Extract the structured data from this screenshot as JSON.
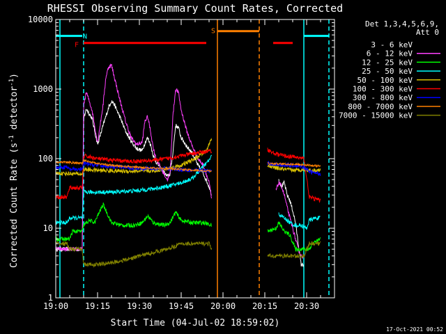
{
  "chart_data": {
    "type": "line",
    "title": "RHESSI Observing Summary Count Rates, Corrected",
    "xlabel": "Start Time (04-Jul-02 18:59:02)",
    "ylabel_main": "Corrected Count Rate (s",
    "ylabel_sup1": "-1",
    "ylabel_mid": " detector",
    "ylabel_sup2": "-1",
    "ylabel_end": ")",
    "footer_date": "17-Oct-2021 00:52",
    "x_range_min": [
      0,
      100
    ],
    "y_range_log": [
      1,
      10000
    ],
    "x_ticks": [
      {
        "t": 0,
        "label": "19:00"
      },
      {
        "t": 15,
        "label": "19:15"
      },
      {
        "t": 30,
        "label": "19:30"
      },
      {
        "t": 45,
        "label": "19:45"
      },
      {
        "t": 60,
        "label": "20:00"
      },
      {
        "t": 75,
        "label": "20:15"
      },
      {
        "t": 90,
        "label": "20:30"
      }
    ],
    "y_ticks": [
      {
        "v": 1,
        "label": "1"
      },
      {
        "v": 10,
        "label": "10"
      },
      {
        "v": 100,
        "label": "100"
      },
      {
        "v": 1000,
        "label": "1000"
      },
      {
        "v": 10000,
        "label": "10000"
      }
    ],
    "legend_header": [
      "Det 1,3,4,5,6,9,",
      "Att 0"
    ],
    "series": [
      {
        "name": "3 - 6 keV",
        "color": "#ffffff",
        "swatch": "#000000",
        "points": [
          [
            0,
            5
          ],
          [
            4,
            5
          ],
          [
            7,
            5
          ],
          [
            9.5,
            5
          ],
          [
            10,
            380
          ],
          [
            11,
            520
          ],
          [
            13,
            380
          ],
          [
            15,
            160
          ],
          [
            17,
            300
          ],
          [
            19,
            550
          ],
          [
            20,
            680
          ],
          [
            21,
            600
          ],
          [
            23,
            400
          ],
          [
            25,
            250
          ],
          [
            27,
            180
          ],
          [
            29,
            140
          ],
          [
            31,
            130
          ],
          [
            32,
            170
          ],
          [
            33,
            200
          ],
          [
            34,
            160
          ],
          [
            35,
            110
          ],
          [
            36,
            90
          ],
          [
            38,
            70
          ],
          [
            40,
            55
          ],
          [
            41,
            60
          ],
          [
            42,
            120
          ],
          [
            43,
            300
          ],
          [
            44,
            280
          ],
          [
            45,
            200
          ],
          [
            47,
            150
          ],
          [
            49,
            120
          ],
          [
            51,
            80
          ],
          [
            53,
            60
          ],
          [
            55,
            40
          ],
          [
            56,
            30
          ]
        ],
        "points2": [
          [
            80,
            50
          ],
          [
            81,
            40
          ],
          [
            82,
            45
          ],
          [
            83,
            30
          ],
          [
            84,
            25
          ],
          [
            85,
            18
          ],
          [
            86,
            12
          ],
          [
            87,
            6
          ],
          [
            88,
            3
          ],
          [
            89,
            3
          ]
        ]
      },
      {
        "name": "6 - 12 keV",
        "color": "#ff40ff",
        "swatch": "#ff40ff",
        "points": [
          [
            0,
            5
          ],
          [
            4,
            5
          ],
          [
            7,
            5
          ],
          [
            9.5,
            5
          ],
          [
            10,
            600
          ],
          [
            11,
            900
          ],
          [
            13,
            500
          ],
          [
            15,
            170
          ],
          [
            17,
            600
          ],
          [
            18,
            1500
          ],
          [
            19,
            2100
          ],
          [
            20,
            2200
          ],
          [
            21,
            1500
          ],
          [
            23,
            700
          ],
          [
            25,
            350
          ],
          [
            27,
            200
          ],
          [
            29,
            160
          ],
          [
            31,
            170
          ],
          [
            32,
            350
          ],
          [
            33,
            400
          ],
          [
            34,
            250
          ],
          [
            35,
            140
          ],
          [
            36,
            100
          ],
          [
            38,
            70
          ],
          [
            40,
            50
          ],
          [
            41,
            60
          ],
          [
            42,
            400
          ],
          [
            43,
            1000
          ],
          [
            44,
            900
          ],
          [
            45,
            500
          ],
          [
            47,
            250
          ],
          [
            49,
            150
          ],
          [
            51,
            100
          ],
          [
            53,
            80
          ],
          [
            55,
            45
          ],
          [
            56,
            25
          ]
        ],
        "points2": [
          [
            79,
            35
          ],
          [
            80,
            45
          ],
          [
            81,
            40
          ],
          [
            82,
            30
          ],
          [
            83,
            20
          ],
          [
            84,
            14
          ],
          [
            85,
            10
          ],
          [
            86,
            7
          ],
          [
            87,
            5
          ],
          [
            88,
            4
          ],
          [
            89,
            4
          ]
        ]
      },
      {
        "name": "12 - 25 keV",
        "color": "#00ff00",
        "swatch": "#00ff00",
        "points": [
          [
            0,
            7
          ],
          [
            3,
            7
          ],
          [
            5,
            7
          ],
          [
            6,
            9
          ],
          [
            9.5,
            9
          ],
          [
            10,
            11
          ],
          [
            12,
            13
          ],
          [
            14,
            12
          ],
          [
            15,
            15
          ],
          [
            17,
            22
          ],
          [
            18,
            18
          ],
          [
            20,
            12
          ],
          [
            24,
            11
          ],
          [
            28,
            11
          ],
          [
            31,
            12
          ],
          [
            33,
            15
          ],
          [
            35,
            12
          ],
          [
            39,
            11
          ],
          [
            41,
            12
          ],
          [
            43,
            17
          ],
          [
            45,
            13
          ],
          [
            49,
            12
          ],
          [
            53,
            12
          ],
          [
            56,
            11
          ]
        ],
        "points2": [
          [
            76,
            9
          ],
          [
            79,
            10
          ],
          [
            80,
            12
          ],
          [
            82,
            9
          ],
          [
            84,
            8
          ],
          [
            86,
            5
          ],
          [
            89,
            5
          ],
          [
            91,
            5
          ],
          [
            92,
            6
          ],
          [
            95,
            7
          ]
        ]
      },
      {
        "name": "25 - 50 keV",
        "color": "#00ffff",
        "swatch": "#00ffff",
        "points": [
          [
            0,
            12
          ],
          [
            4,
            12
          ],
          [
            5,
            14
          ],
          [
            9.5,
            14
          ],
          [
            10,
            33
          ],
          [
            15,
            33
          ],
          [
            20,
            33
          ],
          [
            25,
            34
          ],
          [
            30,
            35
          ],
          [
            35,
            37
          ],
          [
            40,
            40
          ],
          [
            45,
            45
          ],
          [
            49,
            52
          ],
          [
            52,
            70
          ],
          [
            55,
            95
          ],
          [
            56,
            110
          ]
        ],
        "points2": [
          [
            80,
            16
          ],
          [
            82,
            14
          ],
          [
            84,
            12
          ],
          [
            86,
            11
          ],
          [
            88,
            11
          ],
          [
            90,
            10
          ],
          [
            91,
            13
          ],
          [
            93,
            14
          ],
          [
            95,
            14
          ]
        ]
      },
      {
        "name": "50 - 100 keV",
        "color": "#d8c000",
        "swatch": "#d8c000",
        "points": [
          [
            0,
            62
          ],
          [
            9.5,
            60
          ],
          [
            10,
            70
          ],
          [
            15,
            68
          ],
          [
            20,
            67
          ],
          [
            25,
            66
          ],
          [
            30,
            66
          ],
          [
            35,
            67
          ],
          [
            40,
            72
          ],
          [
            45,
            80
          ],
          [
            50,
            100
          ],
          [
            54,
            130
          ],
          [
            56,
            200
          ]
        ],
        "points2": [
          [
            76,
            80
          ],
          [
            78,
            75
          ],
          [
            82,
            70
          ],
          [
            86,
            68
          ],
          [
            89,
            70
          ],
          [
            91,
            68
          ],
          [
            95,
            68
          ]
        ]
      },
      {
        "name": "100 - 300 keV",
        "color": "#ff0000",
        "swatch": "#ff0000",
        "points": [
          [
            0,
            28
          ],
          [
            4,
            28
          ],
          [
            5,
            38
          ],
          [
            9.5,
            38
          ],
          [
            10,
            110
          ],
          [
            15,
            100
          ],
          [
            20,
            95
          ],
          [
            25,
            92
          ],
          [
            30,
            92
          ],
          [
            35,
            95
          ],
          [
            40,
            100
          ],
          [
            45,
            110
          ],
          [
            50,
            120
          ],
          [
            56,
            130
          ]
        ],
        "points2": [
          [
            76,
            135
          ],
          [
            78,
            120
          ],
          [
            82,
            110
          ],
          [
            86,
            105
          ],
          [
            89,
            100
          ],
          [
            91,
            28
          ],
          [
            95,
            25
          ]
        ]
      },
      {
        "name": "300 - 800 keV",
        "color": "#0000ff",
        "swatch": "#0000ff",
        "points": [
          [
            0,
            75
          ],
          [
            4,
            75
          ],
          [
            5,
            70
          ],
          [
            9.5,
            70
          ],
          [
            10,
            85
          ],
          [
            15,
            80
          ],
          [
            20,
            77
          ],
          [
            25,
            75
          ],
          [
            30,
            73
          ],
          [
            35,
            72
          ],
          [
            40,
            72
          ],
          [
            45,
            70
          ],
          [
            50,
            68
          ],
          [
            56,
            66
          ]
        ],
        "points2": [
          [
            76,
            85
          ],
          [
            80,
            82
          ],
          [
            85,
            80
          ],
          [
            88,
            78
          ],
          [
            89,
            75
          ],
          [
            91,
            65
          ],
          [
            95,
            60
          ]
        ]
      },
      {
        "name": "800 - 7000 keV",
        "color": "#ff8000",
        "swatch": "#ff8000",
        "points": [
          [
            0,
            90
          ],
          [
            5,
            88
          ],
          [
            9.5,
            85
          ],
          [
            10,
            95
          ],
          [
            15,
            85
          ],
          [
            20,
            80
          ],
          [
            25,
            77
          ],
          [
            30,
            75
          ],
          [
            35,
            73
          ],
          [
            40,
            72
          ],
          [
            45,
            70
          ],
          [
            50,
            68
          ],
          [
            56,
            66
          ]
        ],
        "points2": [
          [
            76,
            85
          ],
          [
            80,
            84
          ],
          [
            85,
            83
          ],
          [
            88,
            82
          ],
          [
            89,
            82
          ],
          [
            91,
            80
          ],
          [
            95,
            78
          ]
        ]
      },
      {
        "name": "7000 - 15000 keV",
        "color": "#808000",
        "swatch": "#808000",
        "points": [
          [
            0,
            6
          ],
          [
            4,
            6
          ],
          [
            5,
            5
          ],
          [
            9.5,
            5
          ],
          [
            10,
            3
          ],
          [
            15,
            3
          ],
          [
            20,
            3.2
          ],
          [
            25,
            3.5
          ],
          [
            30,
            4
          ],
          [
            35,
            4.5
          ],
          [
            40,
            5
          ],
          [
            45,
            6
          ],
          [
            50,
            6
          ],
          [
            55,
            6
          ],
          [
            56,
            5
          ]
        ],
        "points2": [
          [
            76,
            4
          ],
          [
            80,
            4
          ],
          [
            85,
            4
          ],
          [
            88,
            4
          ],
          [
            89,
            4
          ],
          [
            91,
            6
          ],
          [
            95,
            6
          ]
        ]
      }
    ],
    "annotations": [
      {
        "label": "N",
        "color": "#00ffff",
        "t": 10.5,
        "v": 5800
      },
      {
        "label": "F",
        "color": "#ff0000",
        "t": 7.5,
        "v": 4400
      },
      {
        "label": "S",
        "color": "#ff8000",
        "t": 56.5,
        "v": 7000
      }
    ],
    "flag_bars": [
      {
        "color": "#00ffff",
        "t0": 0,
        "t1": 9.5,
        "v": 5800
      },
      {
        "color": "#ff0000",
        "t0": 10,
        "t1": 54,
        "v": 4600
      },
      {
        "color": "#ff8000",
        "t0": 58,
        "t1": 73,
        "v": 6800
      },
      {
        "color": "#ff0000",
        "t0": 78,
        "t1": 85,
        "v": 4600
      },
      {
        "color": "#00ffff",
        "t0": 89,
        "t1": 98,
        "v": 5800
      }
    ],
    "vlines": [
      {
        "color": "#00ffff",
        "t": 10,
        "style": "dashed"
      },
      {
        "color": "#00ffff",
        "t": 1.5,
        "style": "solid"
      },
      {
        "color": "#ff8000",
        "t": 58,
        "style": "solid"
      },
      {
        "color": "#ff8000",
        "t": 73,
        "style": "dashed"
      },
      {
        "color": "#00ffff",
        "t": 89,
        "style": "solid"
      },
      {
        "color": "#00ffff",
        "t": 98,
        "style": "dashed"
      }
    ]
  }
}
